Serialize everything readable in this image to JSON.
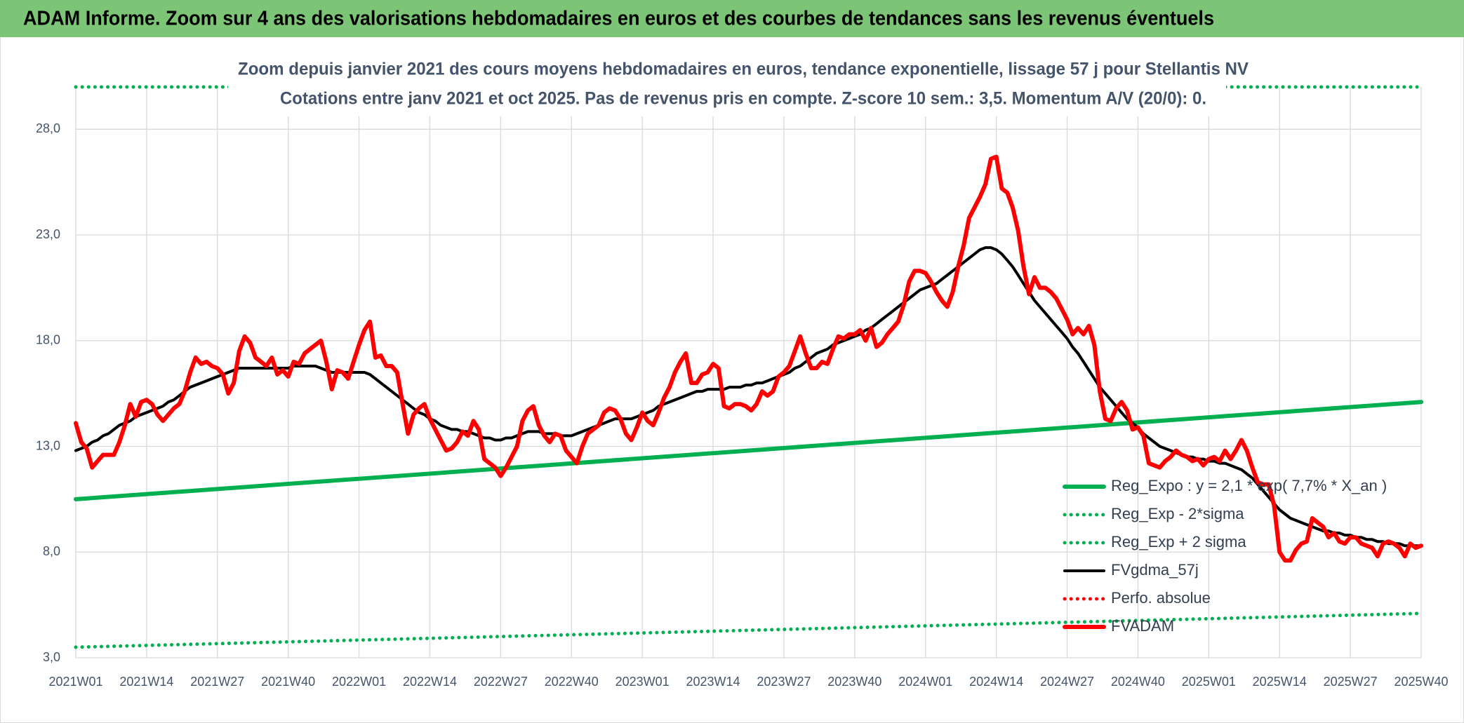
{
  "header": {
    "title": "ADAM Informe. Zoom sur 4 ans des valorisations hebdomadaires en euros et des courbes de tendances sans les revenus éventuels"
  },
  "chart_data": {
    "type": "line",
    "title": "Zoom depuis janvier 2021 des cours moyens hebdomadaires en euros, tendance exponentielle, lissage 57 j pour Stellantis NV",
    "subtitle": "Cotations entre janv 2021 et oct 2025. Pas de revenus pris en compte. Z-score 10 sem.: 3,5. Momentum A/V (20/0): 0.",
    "categories": [
      "2021W01",
      null,
      null,
      null,
      null,
      null,
      null,
      null,
      null,
      null,
      null,
      null,
      null,
      "2021W14",
      null,
      null,
      null,
      null,
      null,
      null,
      null,
      null,
      null,
      null,
      null,
      null,
      "2021W27",
      null,
      null,
      null,
      null,
      null,
      null,
      null,
      null,
      null,
      null,
      null,
      null,
      "2021W40",
      null,
      null,
      null,
      null,
      null,
      null,
      null,
      null,
      null,
      null,
      null,
      null,
      "2022W01",
      null,
      null,
      null,
      null,
      null,
      null,
      null,
      null,
      null,
      null,
      null,
      null,
      "2022W14",
      null,
      null,
      null,
      null,
      null,
      null,
      null,
      null,
      null,
      null,
      null,
      null,
      "2022W27",
      null,
      null,
      null,
      null,
      null,
      null,
      null,
      null,
      null,
      null,
      null,
      null,
      "2022W40",
      null,
      null,
      null,
      null,
      null,
      null,
      null,
      null,
      null,
      null,
      null,
      null,
      "2023W01",
      null,
      null,
      null,
      null,
      null,
      null,
      null,
      null,
      null,
      null,
      null,
      null,
      "2023W14",
      null,
      null,
      null,
      null,
      null,
      null,
      null,
      null,
      null,
      null,
      null,
      null,
      "2023W27",
      null,
      null,
      null,
      null,
      null,
      null,
      null,
      null,
      null,
      null,
      null,
      null,
      "2023W40",
      null,
      null,
      null,
      null,
      null,
      null,
      null,
      null,
      null,
      null,
      null,
      null,
      "2024W01",
      null,
      null,
      null,
      null,
      null,
      null,
      null,
      null,
      null,
      null,
      null,
      null,
      "2024W14",
      null,
      null,
      null,
      null,
      null,
      null,
      null,
      null,
      null,
      null,
      null,
      null,
      "2024W27",
      null,
      null,
      null,
      null,
      null,
      null,
      null,
      null,
      null,
      null,
      null,
      null,
      "2024W40",
      null,
      null,
      null,
      null,
      null,
      null,
      null,
      null,
      null,
      null,
      null,
      null,
      "2025W01",
      null,
      null,
      null,
      null,
      null,
      null,
      null,
      null,
      null,
      null,
      null,
      null,
      "2025W14",
      null,
      null,
      null,
      null,
      null,
      null,
      null,
      null,
      null,
      null,
      null,
      null,
      "2025W27",
      null,
      null,
      null,
      null,
      null,
      null,
      null,
      null,
      null,
      null,
      null,
      null,
      "2025W40"
    ],
    "series": [
      {
        "name": "Reg_Expo : y = 2,1 * exp( 7,7% *  X_an )",
        "color": "#00b050",
        "dash": false,
        "x": [
          "2021W01",
          "2025W40"
        ],
        "values": [
          10.5,
          15.1
        ]
      },
      {
        "name": "Reg_Exp - 2*sigma",
        "color": "#00b050",
        "dash": true,
        "x": [
          "2021W01",
          "2025W40"
        ],
        "values": [
          3.5,
          5.1
        ]
      },
      {
        "name": "Reg_Exp + 2 sigma",
        "color": "#00b050",
        "dash": true,
        "x": [
          "2021W01",
          "2025W40"
        ],
        "values": [
          30,
          30
        ]
      },
      {
        "name": "FVgdma_57j",
        "color": "#000000",
        "dash": false,
        "values": [
          12.8,
          12.9,
          13.0,
          13.2,
          13.3,
          13.5,
          13.6,
          13.8,
          14.0,
          14.1,
          14.2,
          14.4,
          14.5,
          14.6,
          14.7,
          14.8,
          14.9,
          15.1,
          15.2,
          15.4,
          15.6,
          15.8,
          15.9,
          16.0,
          16.1,
          16.2,
          16.3,
          16.4,
          16.5,
          16.6,
          16.7,
          16.7,
          16.7,
          16.7,
          16.7,
          16.7,
          16.7,
          16.7,
          16.7,
          16.7,
          16.8,
          16.8,
          16.8,
          16.8,
          16.8,
          16.7,
          16.6,
          16.5,
          16.5,
          16.5,
          16.5,
          16.5,
          16.5,
          16.5,
          16.4,
          16.2,
          16.0,
          15.8,
          15.6,
          15.4,
          15.2,
          15.0,
          14.8,
          14.6,
          14.5,
          14.3,
          14.2,
          14.0,
          13.9,
          13.8,
          13.8,
          13.7,
          13.7,
          13.6,
          13.5,
          13.4,
          13.4,
          13.3,
          13.3,
          13.4,
          13.4,
          13.5,
          13.6,
          13.7,
          13.7,
          13.7,
          13.6,
          13.6,
          13.6,
          13.5,
          13.5,
          13.5,
          13.6,
          13.7,
          13.8,
          13.9,
          14.0,
          14.1,
          14.2,
          14.3,
          14.3,
          14.3,
          14.3,
          14.4,
          14.5,
          14.6,
          14.7,
          14.9,
          15.0,
          15.1,
          15.2,
          15.3,
          15.4,
          15.5,
          15.6,
          15.6,
          15.7,
          15.7,
          15.7,
          15.7,
          15.8,
          15.8,
          15.8,
          15.9,
          15.9,
          16.0,
          16.0,
          16.1,
          16.2,
          16.3,
          16.4,
          16.5,
          16.7,
          16.8,
          17.0,
          17.2,
          17.4,
          17.5,
          17.6,
          17.8,
          17.9,
          18.0,
          18.1,
          18.2,
          18.3,
          18.5,
          18.6,
          18.8,
          19.0,
          19.2,
          19.4,
          19.6,
          19.8,
          20.0,
          20.2,
          20.4,
          20.5,
          20.6,
          20.7,
          20.9,
          21.1,
          21.3,
          21.5,
          21.7,
          21.9,
          22.1,
          22.3,
          22.4,
          22.4,
          22.3,
          22.1,
          21.8,
          21.5,
          21.1,
          20.7,
          20.3,
          19.9,
          19.6,
          19.3,
          19.0,
          18.7,
          18.4,
          18.1,
          17.7,
          17.4,
          17.0,
          16.6,
          16.2,
          15.8,
          15.5,
          15.2,
          14.9,
          14.6,
          14.3,
          14.1,
          13.9,
          13.6,
          13.4,
          13.2,
          13.0,
          12.9,
          12.8,
          12.7,
          12.6,
          12.5,
          12.5,
          12.4,
          12.4,
          12.3,
          12.3,
          12.2,
          12.2,
          12.1,
          12.0,
          11.9,
          11.7,
          11.5,
          11.2,
          10.9,
          10.6,
          10.3,
          10.0,
          9.8,
          9.6,
          9.5,
          9.4,
          9.3,
          9.2,
          9.1,
          9.0,
          9.0,
          8.9,
          8.9,
          8.8,
          8.8,
          8.7,
          8.7,
          8.6,
          8.6,
          8.5,
          8.5,
          8.4,
          8.4,
          8.4,
          8.3,
          8.3,
          8.3,
          8.3
        ]
      },
      {
        "name": "Perfo. absolue",
        "color": "#ff0000",
        "dash": true
      },
      {
        "name": "FVADAM",
        "color": "#ff0000",
        "dash": false,
        "values": [
          14.1,
          13.2,
          12.9,
          12.0,
          12.3,
          12.6,
          12.6,
          12.6,
          13.2,
          14.0,
          15.0,
          14.4,
          15.1,
          15.2,
          15.0,
          14.5,
          14.2,
          14.5,
          14.8,
          15.0,
          15.6,
          16.5,
          17.2,
          16.9,
          17.0,
          16.8,
          16.7,
          16.4,
          15.5,
          16.0,
          17.5,
          18.2,
          17.9,
          17.2,
          17.0,
          16.8,
          17.2,
          16.4,
          16.6,
          16.3,
          17.0,
          16.9,
          17.4,
          17.6,
          17.8,
          18.0,
          17.0,
          15.7,
          16.6,
          16.5,
          16.2,
          17.0,
          17.8,
          18.5,
          18.9,
          17.2,
          17.3,
          16.8,
          16.8,
          16.5,
          15.0,
          13.6,
          14.5,
          14.8,
          15.0,
          14.3,
          13.8,
          13.3,
          12.8,
          12.9,
          13.2,
          13.7,
          13.5,
          14.2,
          13.8,
          12.4,
          12.2,
          12.0,
          11.6,
          12.0,
          12.5,
          13.0,
          14.2,
          14.7,
          14.9,
          14.0,
          13.5,
          13.2,
          13.6,
          13.5,
          12.8,
          12.5,
          12.2,
          13.0,
          13.6,
          13.8,
          14.0,
          14.6,
          14.8,
          14.7,
          14.3,
          13.6,
          13.3,
          13.9,
          14.6,
          14.2,
          14.0,
          14.6,
          15.3,
          15.8,
          16.5,
          17.0,
          17.4,
          16.0,
          16.0,
          16.4,
          16.5,
          16.9,
          16.7,
          14.9,
          14.8,
          15.0,
          15.0,
          14.9,
          14.7,
          15.0,
          15.6,
          15.4,
          15.6,
          16.3,
          16.5,
          16.8,
          17.5,
          18.2,
          17.4,
          16.7,
          16.7,
          17.0,
          16.9,
          17.6,
          18.2,
          18.1,
          18.3,
          18.3,
          18.5,
          18.0,
          18.6,
          17.7,
          17.9,
          18.3,
          18.6,
          18.9,
          19.7,
          20.8,
          21.3,
          21.3,
          21.2,
          20.8,
          20.3,
          19.9,
          19.6,
          20.3,
          21.5,
          22.5,
          23.8,
          24.3,
          24.8,
          25.4,
          26.6,
          26.7,
          25.2,
          25.0,
          24.3,
          23.2,
          21.5,
          20.2,
          21.0,
          20.5,
          20.5,
          20.3,
          20.0,
          19.5,
          19.0,
          18.3,
          18.6,
          18.3,
          18.7,
          17.8,
          15.6,
          14.3,
          14.2,
          14.8,
          15.1,
          14.7,
          13.8,
          13.9,
          13.5,
          12.2,
          12.1,
          12.0,
          12.3,
          12.5,
          12.8,
          12.6,
          12.5,
          12.3,
          12.4,
          12.1,
          12.4,
          12.5,
          12.3,
          12.8,
          12.4,
          12.8,
          13.3,
          12.8,
          12.0,
          11.3,
          11.2,
          11.2,
          10.2,
          8.0,
          7.6,
          7.6,
          8.1,
          8.4,
          8.5,
          9.6,
          9.4,
          9.2,
          8.7,
          8.9,
          8.5,
          8.4,
          8.7,
          8.7,
          8.4,
          8.3,
          8.2,
          7.8,
          8.4,
          8.5,
          8.4,
          8.2,
          7.8,
          8.4,
          8.2,
          8.3
        ]
      }
    ],
    "ylim": [
      3,
      30
    ],
    "yticks": [
      {
        "value": 3,
        "label": "3,0"
      },
      {
        "value": 8,
        "label": "8,0"
      },
      {
        "value": 13,
        "label": "13,0"
      },
      {
        "value": 18,
        "label": "18,0"
      },
      {
        "value": 23,
        "label": "23,0"
      },
      {
        "value": 28,
        "label": "28,0"
      }
    ],
    "grid": true
  }
}
